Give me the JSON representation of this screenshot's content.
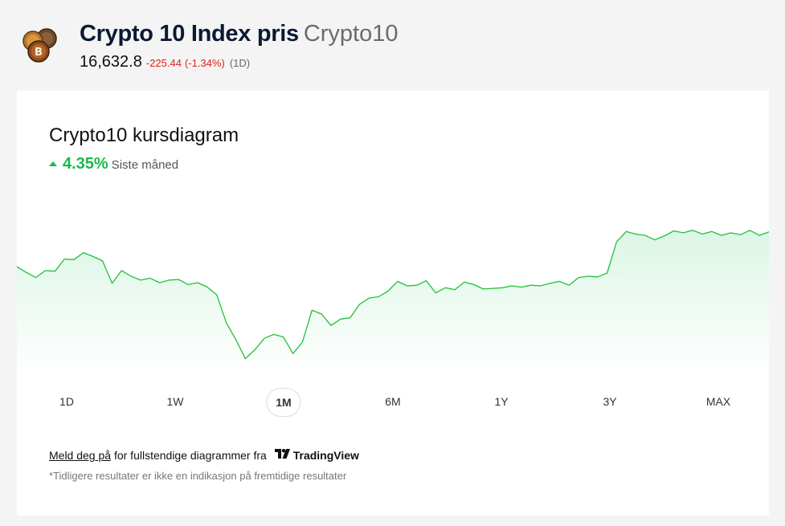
{
  "header": {
    "title": "Crypto 10 Index pris",
    "ticker": "Crypto10",
    "price": "16,632.8",
    "change": "-225.44",
    "change_pct": "(-1.34%)",
    "period": "(1D)"
  },
  "card": {
    "title": "Crypto10 kursdiagram",
    "performance_value": "4.35%",
    "performance_label": "Siste måned",
    "ranges": [
      "1D",
      "1W",
      "1M",
      "6M",
      "1Y",
      "3Y",
      "MAX"
    ],
    "active_range": "1M",
    "signup_link": "Meld deg på",
    "signup_text": "for fullstendige diagrammer fra",
    "provider": "TradingView",
    "disclaimer": "*Tidligere resultater er ikke en indikasjon på fremtidige resultater"
  },
  "colors": {
    "line": "#1fc13a",
    "positive": "#19b84a",
    "negative": "#e0211b"
  },
  "chart_data": {
    "type": "area",
    "series": [
      {
        "values": [
          16360,
          16315,
          16275,
          16330,
          16325,
          16420,
          16415,
          16470,
          16440,
          16405,
          16230,
          16330,
          16285,
          16255,
          16270,
          16235,
          16255,
          16260,
          16220,
          16235,
          16200,
          16140,
          15920,
          15790,
          15640,
          15710,
          15800,
          15830,
          15810,
          15680,
          15770,
          16020,
          15990,
          15900,
          15950,
          15960,
          16065,
          16115,
          16125,
          16170,
          16245,
          16210,
          16215,
          16250,
          16155,
          16195,
          16180,
          16240,
          16220,
          16185,
          16190,
          16195,
          16210,
          16200,
          16215,
          16210,
          16230,
          16245,
          16215,
          16275,
          16285,
          16280,
          16310,
          16555,
          16635,
          16615,
          16605,
          16570,
          16600,
          16640,
          16625,
          16645,
          16615,
          16635,
          16605,
          16625,
          16610,
          16645,
          16605,
          16632.8
        ]
      }
    ]
  }
}
